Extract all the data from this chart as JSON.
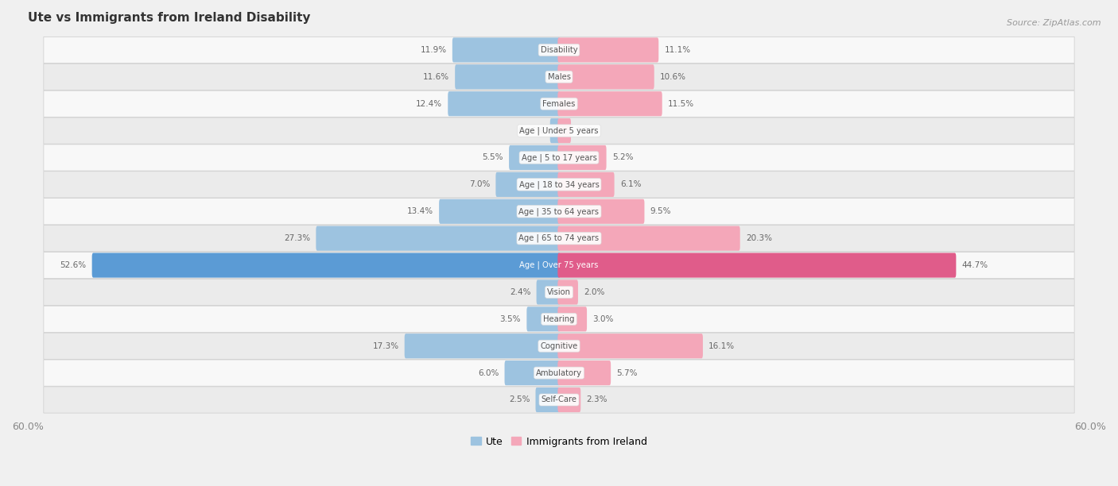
{
  "title": "Ute vs Immigrants from Ireland Disability",
  "source": "Source: ZipAtlas.com",
  "categories": [
    "Disability",
    "Males",
    "Females",
    "Age | Under 5 years",
    "Age | 5 to 17 years",
    "Age | 18 to 34 years",
    "Age | 35 to 64 years",
    "Age | 65 to 74 years",
    "Age | Over 75 years",
    "Vision",
    "Hearing",
    "Cognitive",
    "Ambulatory",
    "Self-Care"
  ],
  "ute_values": [
    11.9,
    11.6,
    12.4,
    0.86,
    5.5,
    7.0,
    13.4,
    27.3,
    52.6,
    2.4,
    3.5,
    17.3,
    6.0,
    2.5
  ],
  "ireland_values": [
    11.1,
    10.6,
    11.5,
    1.2,
    5.2,
    6.1,
    9.5,
    20.3,
    44.7,
    2.0,
    3.0,
    16.1,
    5.7,
    2.3
  ],
  "ute_color": "#9dc3e0",
  "ireland_color": "#f4a7b9",
  "ute_color_highlight": "#5b9bd5",
  "ireland_color_highlight": "#e05c8a",
  "axis_limit": 60.0,
  "bg_color": "#f0f0f0",
  "row_color_odd": "#f8f8f8",
  "row_color_even": "#ebebeb",
  "label_color": "#666666",
  "title_color": "#333333",
  "legend_ute_label": "Ute",
  "legend_ireland_label": "Immigrants from Ireland"
}
